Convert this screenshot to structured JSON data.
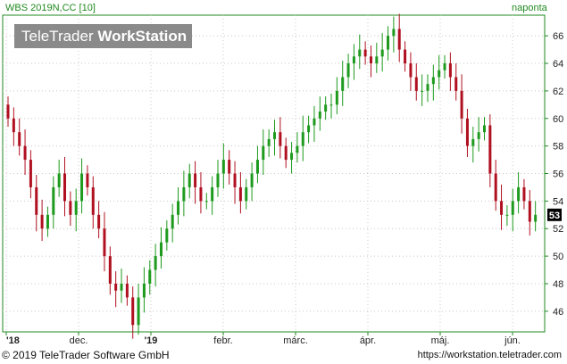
{
  "header": {
    "instrument": "WBS 2019N,CC [10]",
    "period": "naponta"
  },
  "watermark": {
    "part1": "TeleTrader ",
    "part2": "WorkStation"
  },
  "footer": {
    "copyright": "© 2019 TeleTrader Software GmbH",
    "site": "https://workstation.teletrader.com"
  },
  "colors": {
    "up": "#1e9a1e",
    "down": "#b01020",
    "pink": "#e07ad8",
    "grid": "#c8c8c8",
    "axis": "#1f8a1f"
  },
  "chart_data": {
    "type": "candlestick",
    "title": "WBS 2019N,CC [10]",
    "period": "naponta",
    "y_range": [
      44.5,
      67.5
    ],
    "y_ticks": [
      46,
      48,
      50,
      52,
      54,
      56,
      58,
      60,
      62,
      64,
      66
    ],
    "x_labels": [
      "'18",
      "dec.",
      "'19",
      "febr.",
      "márc.",
      "ápr.",
      "máj.",
      "jún."
    ],
    "last_value": 53,
    "series": [
      {
        "values": [
          60,
          59,
          58,
          57,
          55,
          53,
          52,
          53,
          55,
          56,
          54,
          53,
          54,
          56,
          55,
          53,
          52,
          50,
          48,
          47.5,
          48,
          47,
          45,
          47,
          48,
          49,
          50,
          51,
          52,
          53,
          54,
          55,
          56,
          55,
          54,
          54,
          55,
          56,
          57,
          56,
          55,
          54,
          55,
          56,
          57,
          58,
          58.5,
          59,
          58,
          57,
          57.5,
          58,
          59,
          59.5,
          60,
          60.5,
          61,
          61,
          62,
          63,
          64,
          64.5,
          65,
          64.5,
          64,
          64.5,
          65,
          66,
          66.5,
          65,
          64,
          63,
          62,
          62,
          62.5,
          63,
          63.5,
          64,
          63,
          62,
          60,
          58,
          58.5,
          59,
          59.5,
          56,
          54,
          53,
          53,
          54,
          55,
          54,
          52.5,
          53
        ]
      }
    ]
  }
}
